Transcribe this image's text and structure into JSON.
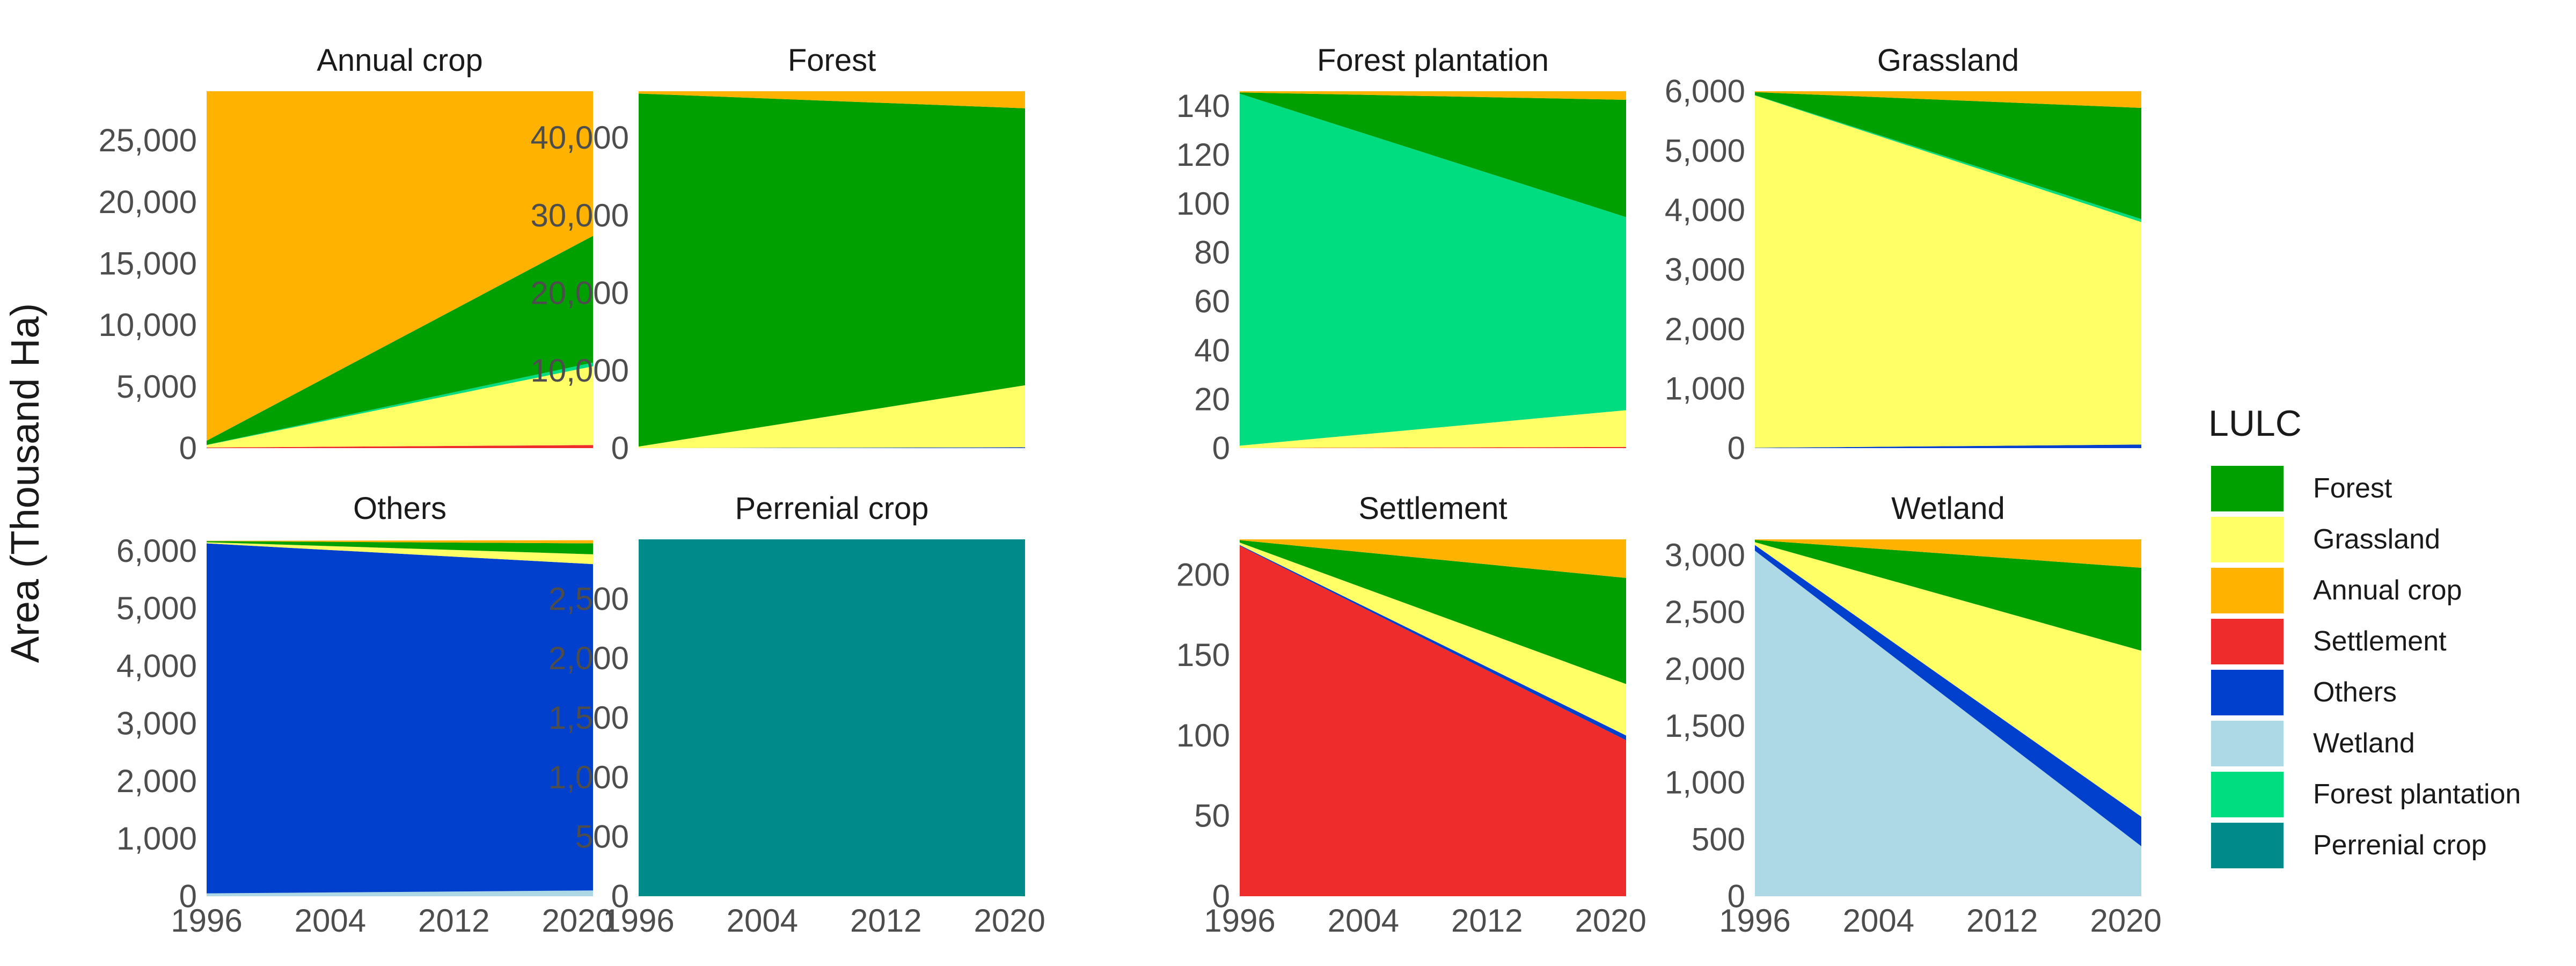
{
  "chart_data": {
    "type": "area",
    "ylabel": "Area (Thousand Ha)",
    "x_tick_labels": [
      "1996",
      "2004",
      "2012",
      "2020"
    ],
    "x_range": [
      1996,
      2021
    ],
    "legend": {
      "title": "LULC",
      "placement": "right",
      "items": [
        {
          "name": "Forest",
          "color": "#00A000"
        },
        {
          "name": "Grassland",
          "color": "#FFFF66"
        },
        {
          "name": "Annual crop",
          "color": "#FFB300"
        },
        {
          "name": "Settlement",
          "color": "#EE2C2C"
        },
        {
          "name": "Others",
          "color": "#0040CC"
        },
        {
          "name": "Wetland",
          "color": "#ADD8E6"
        },
        {
          "name": "Forest plantation",
          "color": "#00DD80"
        },
        {
          "name": "Perrenial crop",
          "color": "#008B8B"
        }
      ]
    },
    "x": [
      1996,
      2021
    ],
    "panels": [
      {
        "title": "Annual crop",
        "ylim": [
          0,
          29000
        ],
        "y_ticks": [
          0,
          5000,
          10000,
          15000,
          20000,
          25000
        ],
        "y_tick_labels": [
          "0",
          "5,000",
          "10,000",
          "15,000",
          "20,000",
          "25,000"
        ],
        "series": [
          {
            "name": "Settlement",
            "values": [
              50,
              250
            ]
          },
          {
            "name": "Grassland",
            "values": [
              200,
              6400
            ]
          },
          {
            "name": "Forest plantation",
            "values": [
              10,
              300
            ]
          },
          {
            "name": "Forest",
            "values": [
              340,
              10300
            ]
          },
          {
            "name": "Annual crop",
            "values": [
              28400,
              11750
            ]
          }
        ]
      },
      {
        "title": "Forest",
        "ylim": [
          0,
          46000
        ],
        "y_ticks": [
          0,
          10000,
          20000,
          30000,
          40000
        ],
        "y_tick_labels": [
          "0",
          "10,000",
          "20,000",
          "30,000",
          "40,000"
        ],
        "series": [
          {
            "name": "Others",
            "values": [
              0,
              100
            ]
          },
          {
            "name": "Grassland",
            "values": [
              200,
              8000
            ]
          },
          {
            "name": "Forest",
            "values": [
              45500,
              35700
            ]
          },
          {
            "name": "Annual crop",
            "values": [
              300,
              2200
            ]
          }
        ]
      },
      {
        "title": "Forest plantation",
        "ylim": [
          0,
          146
        ],
        "y_ticks": [
          0,
          20,
          40,
          60,
          80,
          100,
          120,
          140
        ],
        "y_tick_labels": [
          "0",
          "20",
          "40",
          "60",
          "80",
          "100",
          "120",
          "140"
        ],
        "series": [
          {
            "name": "Settlement",
            "values": [
              0,
              0.5
            ]
          },
          {
            "name": "Grassland",
            "values": [
              1,
              15
            ]
          },
          {
            "name": "Forest plantation",
            "values": [
              144,
              79
            ]
          },
          {
            "name": "Forest",
            "values": [
              0.5,
              48
            ]
          },
          {
            "name": "Annual crop",
            "values": [
              0.5,
              3.5
            ]
          }
        ]
      },
      {
        "title": "Grassland",
        "ylim": [
          0,
          6000
        ],
        "y_ticks": [
          0,
          1000,
          2000,
          3000,
          4000,
          5000,
          6000
        ],
        "y_tick_labels": [
          "0",
          "1,000",
          "2,000",
          "3,000",
          "4,000",
          "5,000",
          "6,000"
        ],
        "series": [
          {
            "name": "Others",
            "values": [
              5,
              60
            ]
          },
          {
            "name": "Grassland",
            "values": [
              5925,
              3740
            ]
          },
          {
            "name": "Forest plantation",
            "values": [
              5,
              50
            ]
          },
          {
            "name": "Forest",
            "values": [
              50,
              1870
            ]
          },
          {
            "name": "Annual crop",
            "values": [
              15,
              280
            ]
          }
        ]
      },
      {
        "title": "Others",
        "ylim": [
          0,
          6200
        ],
        "y_ticks": [
          0,
          1000,
          2000,
          3000,
          4000,
          5000,
          6000
        ],
        "y_tick_labels": [
          "0",
          "1,000",
          "2,000",
          "3,000",
          "4,000",
          "5,000",
          "6,000"
        ],
        "series": [
          {
            "name": "Wetland",
            "values": [
              50,
              100
            ]
          },
          {
            "name": "Others",
            "values": [
              6080,
              5670
            ]
          },
          {
            "name": "Grassland",
            "values": [
              20,
              170
            ]
          },
          {
            "name": "Forest",
            "values": [
              20,
              190
            ]
          },
          {
            "name": "Annual crop",
            "values": [
              5,
              55
            ]
          }
        ]
      },
      {
        "title": "Perrenial crop",
        "ylim": [
          0,
          3000
        ],
        "y_ticks": [
          0,
          500,
          1000,
          1500,
          2000,
          2500
        ],
        "y_tick_labels": [
          "0",
          "500",
          "1,000",
          "1,500",
          "2,000",
          "2,500"
        ],
        "series": [
          {
            "name": "Perrenial crop",
            "values": [
              3000,
              3000
            ]
          }
        ]
      },
      {
        "title": "Settlement",
        "ylim": [
          0,
          222
        ],
        "y_ticks": [
          0,
          50,
          100,
          150,
          200
        ],
        "y_tick_labels": [
          "0",
          "50",
          "100",
          "150",
          "200"
        ],
        "series": [
          {
            "name": "Settlement",
            "values": [
              218,
              97
            ]
          },
          {
            "name": "Others",
            "values": [
              0.5,
              3
            ]
          },
          {
            "name": "Grassland",
            "values": [
              1.5,
              32
            ]
          },
          {
            "name": "Forest",
            "values": [
              1.5,
              66
            ]
          },
          {
            "name": "Annual crop",
            "values": [
              0.5,
              24
            ]
          }
        ]
      },
      {
        "title": "Wetland",
        "ylim": [
          0,
          3140
        ],
        "y_ticks": [
          0,
          500,
          1000,
          1500,
          2000,
          2500,
          3000
        ],
        "y_tick_labels": [
          "0",
          "500",
          "1,000",
          "1,500",
          "2,000",
          "2,500",
          "3,000"
        ],
        "series": [
          {
            "name": "Wetland",
            "values": [
              3040,
              440
            ]
          },
          {
            "name": "Others",
            "values": [
              50,
              260
            ]
          },
          {
            "name": "Grassland",
            "values": [
              25,
              1460
            ]
          },
          {
            "name": "Forest",
            "values": [
              20,
              730
            ]
          },
          {
            "name": "Annual crop",
            "values": [
              5,
              250
            ]
          }
        ]
      }
    ]
  }
}
